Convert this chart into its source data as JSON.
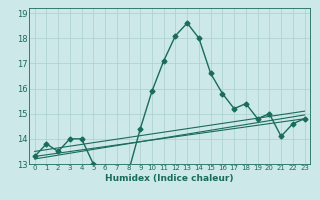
{
  "title": "",
  "xlabel": "Humidex (Indice chaleur)",
  "bg_color": "#cce8e8",
  "line_color": "#1a6b5a",
  "grid_color": "#aacfcf",
  "xlim": [
    -0.5,
    23.5
  ],
  "ylim": [
    13,
    19.2
  ],
  "x_ticks": [
    0,
    1,
    2,
    3,
    4,
    5,
    6,
    7,
    8,
    9,
    10,
    11,
    12,
    13,
    14,
    15,
    16,
    17,
    18,
    19,
    20,
    21,
    22,
    23
  ],
  "y_ticks": [
    13,
    14,
    15,
    16,
    17,
    18,
    19
  ],
  "series": [
    {
      "x": [
        0,
        1,
        2,
        3,
        4,
        5,
        6,
        7,
        8,
        9,
        10,
        11,
        12,
        13,
        14,
        15,
        16,
        17,
        18,
        19,
        20,
        21,
        22,
        23
      ],
      "y": [
        13.3,
        13.8,
        13.5,
        14.0,
        14.0,
        13.0,
        12.9,
        12.8,
        12.7,
        14.4,
        15.9,
        17.1,
        18.1,
        18.6,
        18.0,
        16.6,
        15.8,
        15.2,
        15.4,
        14.8,
        15.0,
        14.1,
        14.6,
        14.8
      ],
      "marker": "D",
      "markersize": 2.5,
      "linewidth": 1.0,
      "zorder": 3
    },
    {
      "x": [
        0,
        23
      ],
      "y": [
        13.3,
        14.8
      ],
      "marker": null,
      "linewidth": 0.8,
      "zorder": 2
    },
    {
      "x": [
        0,
        23
      ],
      "y": [
        13.5,
        15.1
      ],
      "marker": null,
      "linewidth": 0.8,
      "zorder": 2
    },
    {
      "x": [
        0,
        23
      ],
      "y": [
        13.2,
        14.95
      ],
      "marker": null,
      "linewidth": 0.8,
      "zorder": 2
    }
  ]
}
